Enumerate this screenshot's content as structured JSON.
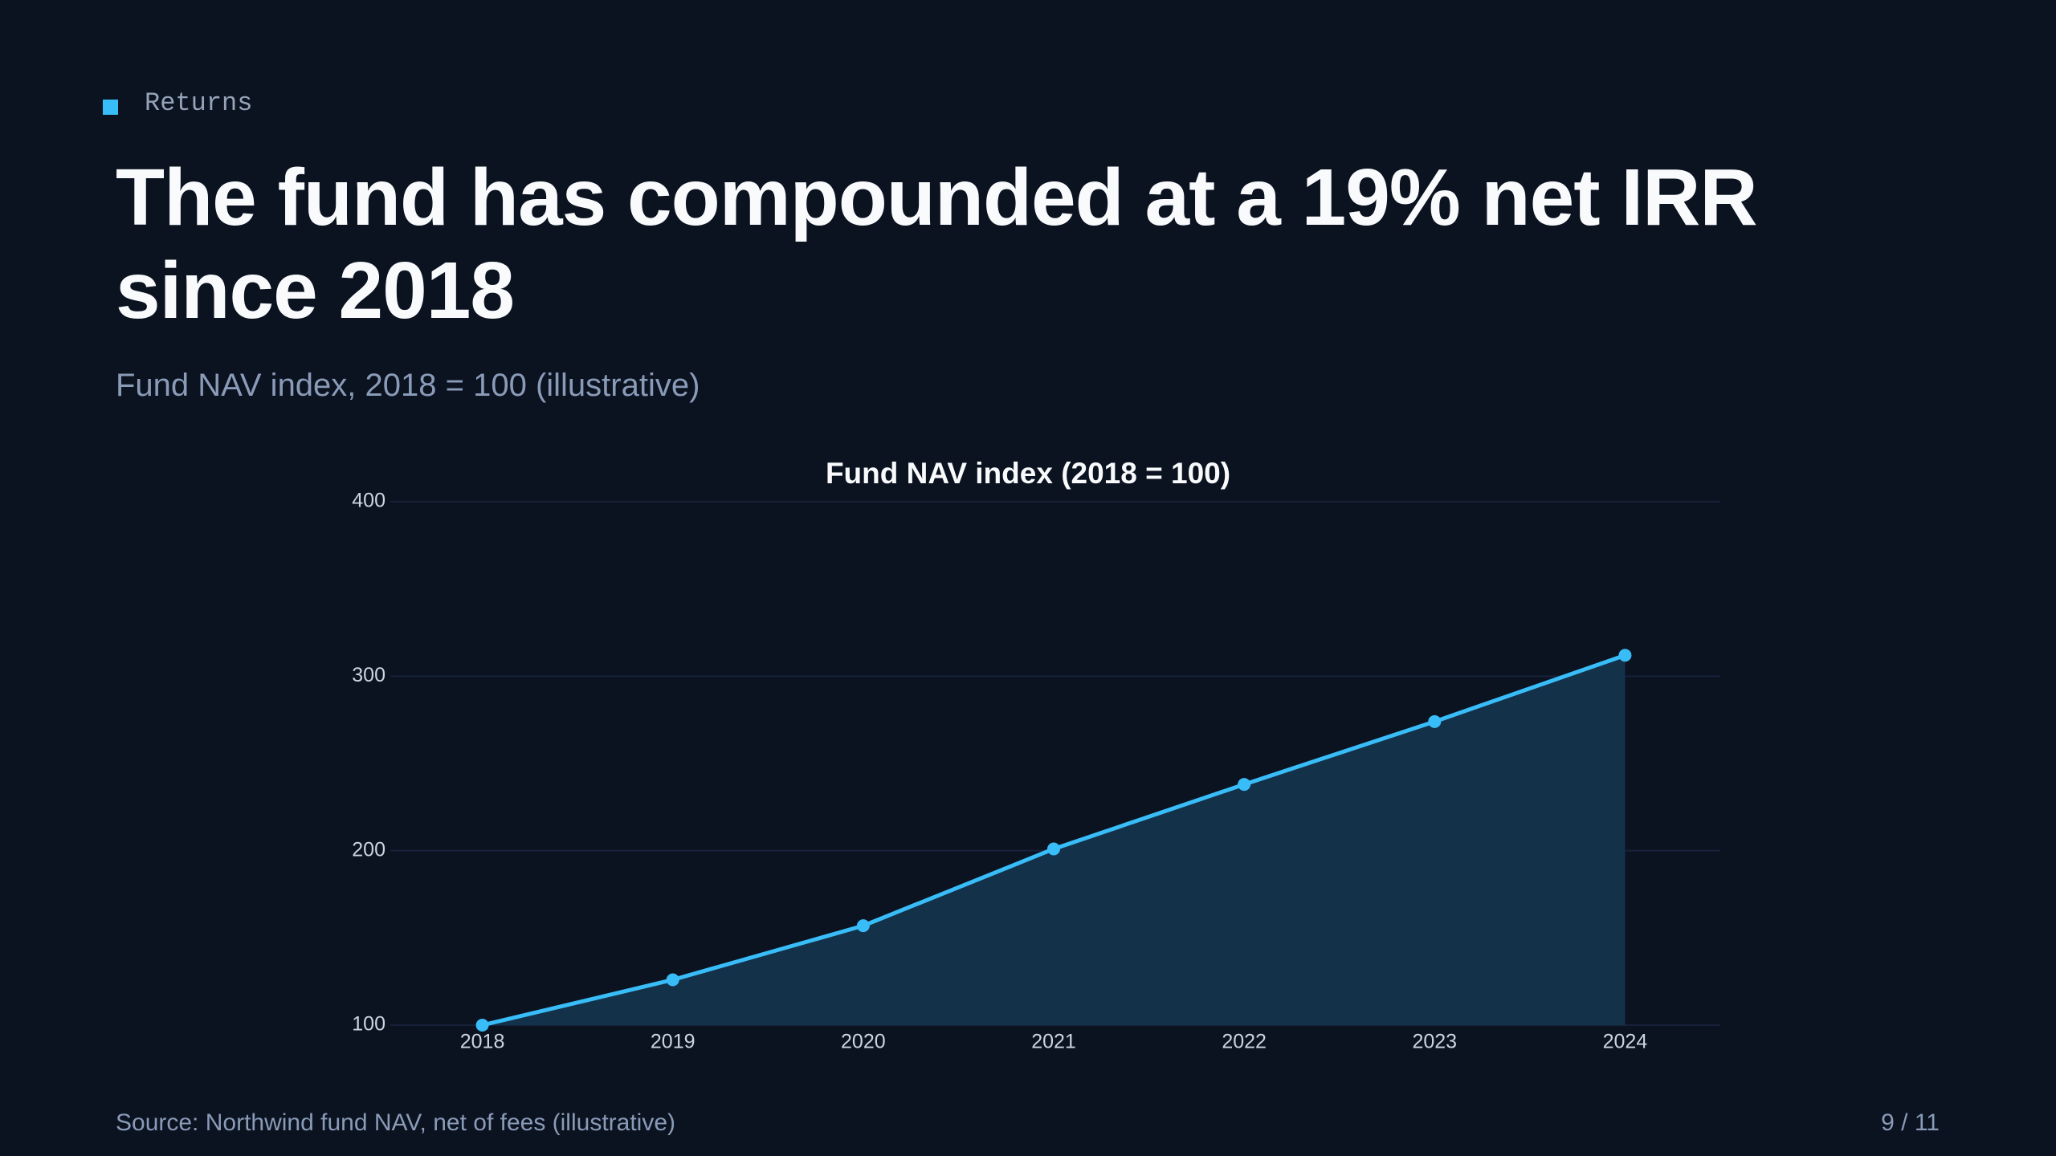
{
  "slide": {
    "kicker": "Returns",
    "headline": "The fund has compounded at a 19% net IRR since 2018",
    "subtitle": "Fund NAV index, 2018 = 100 (illustrative)",
    "source": "Source: Northwind fund NAV, net of fees (illustrative)",
    "page": "9 / 11"
  },
  "chart_data": {
    "type": "line",
    "area": true,
    "title": "Fund NAV index (2018 = 100)",
    "categories": [
      "2018",
      "2019",
      "2020",
      "2021",
      "2022",
      "2023",
      "2024"
    ],
    "values": [
      100,
      126,
      157,
      201,
      238,
      274,
      312
    ],
    "color": "#38bdf8",
    "area_color": "#14314a",
    "ylim": [
      100,
      400
    ],
    "yticks": [
      100,
      200,
      300,
      400
    ],
    "grid": true
  }
}
